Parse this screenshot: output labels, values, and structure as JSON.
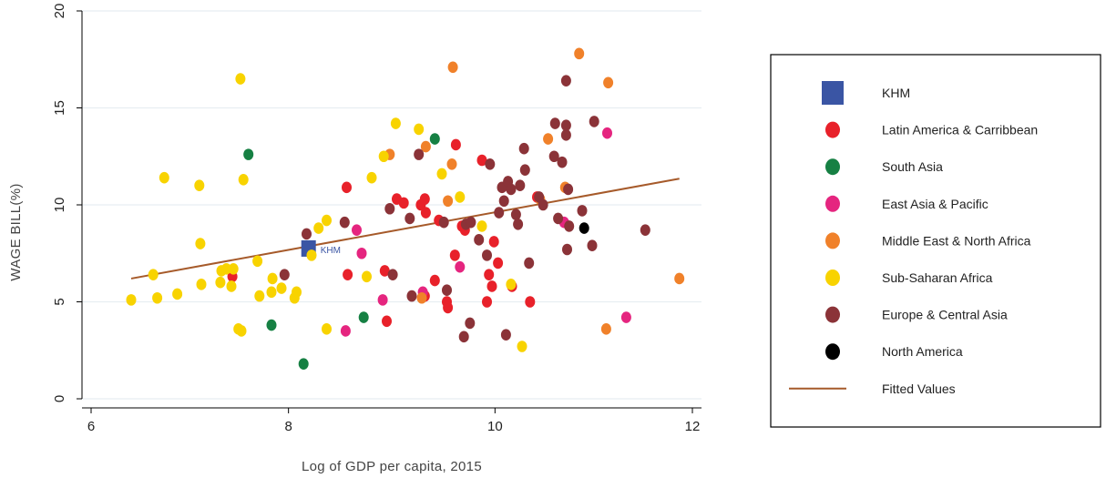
{
  "chart_data": {
    "type": "scatter",
    "title": "",
    "xlabel": "Log of GDP per capita, 2015",
    "ylabel": "WAGE BILL(%)",
    "xlim": [
      6,
      12
    ],
    "ylim": [
      0,
      20
    ],
    "x_ticks": [
      6,
      8,
      10,
      12
    ],
    "y_ticks": [
      0,
      5,
      10,
      15,
      20
    ],
    "grid": "horizontal",
    "legend_position": "right",
    "series": [
      {
        "name": "KHM",
        "color": "#3a55a4",
        "marker": "square",
        "points": [
          [
            8.17,
            7.75
          ]
        ]
      },
      {
        "name": "Latin America & Carribbean",
        "color": "#e8212a",
        "marker": "circle",
        "points": [
          [
            7.41,
            6.3
          ],
          [
            8.55,
            10.9
          ],
          [
            8.56,
            6.4
          ],
          [
            8.93,
            6.6
          ],
          [
            8.95,
            4.0
          ],
          [
            9.05,
            10.3
          ],
          [
            9.12,
            10.1
          ],
          [
            9.29,
            10.0
          ],
          [
            9.33,
            10.3
          ],
          [
            9.33,
            5.3
          ],
          [
            9.34,
            9.6
          ],
          [
            9.43,
            6.1
          ],
          [
            9.47,
            9.2
          ],
          [
            9.55,
            5.0
          ],
          [
            9.56,
            4.7
          ],
          [
            9.63,
            7.4
          ],
          [
            9.64,
            13.1
          ],
          [
            9.7,
            8.9
          ],
          [
            9.73,
            8.7
          ],
          [
            9.9,
            12.3
          ],
          [
            9.95,
            5.0
          ],
          [
            9.97,
            6.4
          ],
          [
            10.0,
            5.8
          ],
          [
            10.02,
            8.1
          ],
          [
            10.06,
            7.0
          ],
          [
            10.2,
            5.8
          ],
          [
            10.38,
            5.0
          ],
          [
            10.45,
            10.4
          ]
        ]
      },
      {
        "name": "South Asia",
        "color": "#168043",
        "marker": "circle",
        "points": [
          [
            7.57,
            12.6
          ],
          [
            7.8,
            3.8
          ],
          [
            8.12,
            1.8
          ],
          [
            8.72,
            4.2
          ],
          [
            9.43,
            13.4
          ]
        ]
      },
      {
        "name": "East Asia & Pacific",
        "color": "#e5257f",
        "marker": "circle",
        "points": [
          [
            8.54,
            3.5
          ],
          [
            8.65,
            8.7
          ],
          [
            8.7,
            7.5
          ],
          [
            8.91,
            5.1
          ],
          [
            9.31,
            5.5
          ],
          [
            9.68,
            6.8
          ],
          [
            10.72,
            9.1
          ],
          [
            11.15,
            13.7
          ],
          [
            11.34,
            4.2
          ]
        ]
      },
      {
        "name": "Middle East & North Africa",
        "color": "#f0812a",
        "marker": "circle",
        "points": [
          [
            8.98,
            12.6
          ],
          [
            9.3,
            5.2
          ],
          [
            9.34,
            13.0
          ],
          [
            9.56,
            10.2
          ],
          [
            9.6,
            12.1
          ],
          [
            9.61,
            17.1
          ],
          [
            10.48,
            10.3
          ],
          [
            10.56,
            13.4
          ],
          [
            10.73,
            10.9
          ],
          [
            10.87,
            17.8
          ],
          [
            11.14,
            3.6
          ],
          [
            11.16,
            16.3
          ],
          [
            11.87,
            6.2
          ]
        ]
      },
      {
        "name": "Sub-Saharan Africa",
        "color": "#f8d300",
        "marker": "circle",
        "points": [
          [
            6.4,
            5.1
          ],
          [
            6.62,
            6.4
          ],
          [
            6.66,
            5.2
          ],
          [
            6.73,
            11.4
          ],
          [
            6.86,
            5.4
          ],
          [
            7.08,
            11.0
          ],
          [
            7.09,
            8.0
          ],
          [
            7.1,
            5.9
          ],
          [
            7.29,
            6.0
          ],
          [
            7.3,
            6.6
          ],
          [
            7.35,
            6.7
          ],
          [
            7.4,
            5.8
          ],
          [
            7.42,
            6.7
          ],
          [
            7.47,
            3.6
          ],
          [
            7.49,
            16.5
          ],
          [
            7.5,
            3.5
          ],
          [
            7.52,
            11.3
          ],
          [
            7.66,
            7.1
          ],
          [
            7.68,
            5.3
          ],
          [
            7.8,
            5.5
          ],
          [
            7.81,
            6.2
          ],
          [
            7.9,
            5.7
          ],
          [
            8.03,
            5.2
          ],
          [
            8.05,
            5.5
          ],
          [
            8.2,
            7.4
          ],
          [
            8.27,
            8.8
          ],
          [
            8.35,
            9.2
          ],
          [
            8.35,
            3.6
          ],
          [
            8.75,
            6.3
          ],
          [
            8.8,
            11.4
          ],
          [
            8.92,
            12.5
          ],
          [
            9.04,
            14.2
          ],
          [
            9.27,
            13.9
          ],
          [
            9.5,
            11.6
          ],
          [
            9.68,
            10.4
          ],
          [
            9.9,
            8.9
          ],
          [
            10.19,
            5.9
          ],
          [
            10.3,
            2.7
          ]
        ]
      },
      {
        "name": "Europe & Central Asia",
        "color": "#8b3338",
        "marker": "circle",
        "points": [
          [
            8.15,
            8.5
          ],
          [
            7.93,
            6.4
          ],
          [
            8.53,
            9.1
          ],
          [
            8.98,
            9.8
          ],
          [
            9.01,
            6.4
          ],
          [
            9.18,
            9.3
          ],
          [
            9.2,
            5.3
          ],
          [
            9.27,
            12.6
          ],
          [
            9.52,
            9.1
          ],
          [
            9.55,
            5.6
          ],
          [
            9.72,
            3.2
          ],
          [
            9.74,
            9.0
          ],
          [
            9.78,
            3.9
          ],
          [
            9.79,
            9.1
          ],
          [
            9.87,
            8.2
          ],
          [
            9.95,
            7.4
          ],
          [
            9.98,
            12.1
          ],
          [
            10.07,
            9.6
          ],
          [
            10.1,
            10.9
          ],
          [
            10.12,
            10.2
          ],
          [
            10.14,
            3.3
          ],
          [
            10.16,
            11.2
          ],
          [
            10.19,
            10.8
          ],
          [
            10.24,
            9.5
          ],
          [
            10.26,
            9.0
          ],
          [
            10.28,
            11.0
          ],
          [
            10.32,
            12.9
          ],
          [
            10.33,
            11.8
          ],
          [
            10.37,
            7.0
          ],
          [
            10.47,
            10.4
          ],
          [
            10.51,
            10.0
          ],
          [
            10.62,
            12.5
          ],
          [
            10.63,
            14.2
          ],
          [
            10.66,
            9.3
          ],
          [
            10.7,
            12.2
          ],
          [
            10.74,
            13.6
          ],
          [
            10.74,
            14.1
          ],
          [
            10.74,
            16.4
          ],
          [
            10.75,
            7.7
          ],
          [
            10.76,
            10.8
          ],
          [
            10.77,
            8.9
          ],
          [
            10.9,
            9.7
          ],
          [
            11.0,
            7.9
          ],
          [
            11.02,
            14.3
          ],
          [
            11.53,
            8.7
          ]
        ]
      },
      {
        "name": "North America",
        "color": "#000000",
        "marker": "circle",
        "points": [
          [
            10.92,
            8.8
          ]
        ]
      },
      {
        "name": "Fitted Values",
        "color": "#a65a2a",
        "marker": "line",
        "points": [
          [
            6.4,
            6.2
          ],
          [
            11.87,
            11.35
          ]
        ]
      }
    ],
    "annotations": [
      {
        "text": "KHM",
        "x": 8.17,
        "y": 7.75,
        "color": "#3a55a4"
      }
    ]
  }
}
